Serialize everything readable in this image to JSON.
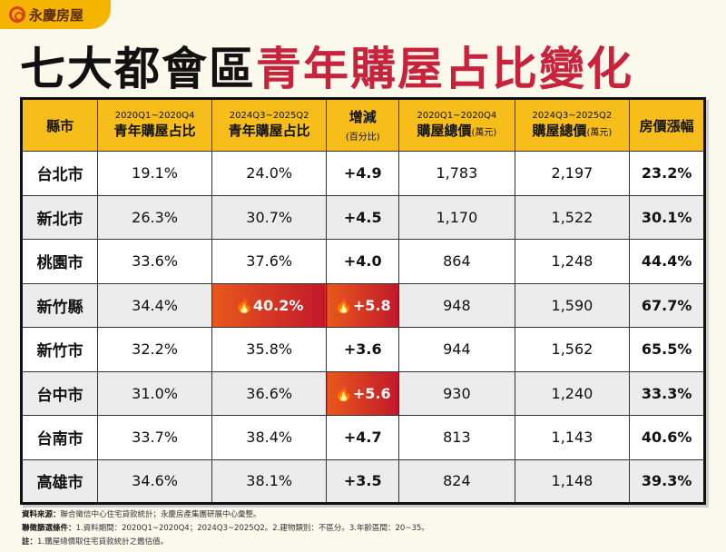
{
  "brand": "永慶房屋",
  "title": {
    "black": "七大都會區",
    "red": "青年購屋占比變化"
  },
  "headers": [
    {
      "main": "縣市"
    },
    {
      "sub": "2020Q1~2020Q4",
      "main": "青年購屋占比"
    },
    {
      "sub": "2024Q3~2025Q2",
      "main": "青年購屋占比"
    },
    {
      "main": "增減",
      "unit": "(百分比)"
    },
    {
      "sub": "2020Q1~2020Q4",
      "main": "購屋總價",
      "unit": "(萬元)"
    },
    {
      "sub": "2024Q3~2025Q2",
      "main": "購屋總價",
      "unit": "(萬元)"
    },
    {
      "main": "房價漲幅"
    }
  ],
  "rows": [
    [
      "台北市",
      "19.1%",
      "24.0%",
      "+4.9",
      "1,783",
      "2,197",
      "23.2%"
    ],
    [
      "新北市",
      "26.3%",
      "30.7%",
      "+4.5",
      "1,170",
      "1,522",
      "30.1%"
    ],
    [
      "桃園市",
      "33.6%",
      "37.6%",
      "+4.0",
      "864",
      "1,248",
      "44.4%"
    ],
    [
      "新竹縣",
      "34.4%",
      "🔥40.2%",
      "🔥+5.8",
      "948",
      "1,590",
      "67.7%"
    ],
    [
      "新竹市",
      "32.2%",
      "35.8%",
      "+3.6",
      "944",
      "1,562",
      "65.5%"
    ],
    [
      "台中市",
      "31.0%",
      "36.6%",
      "🔥+5.6",
      "930",
      "1,240",
      "33.3%"
    ],
    [
      "台南市",
      "33.7%",
      "38.4%",
      "+4.7",
      "813",
      "1,143",
      "40.6%"
    ],
    [
      "高雄市",
      "34.6%",
      "38.1%",
      "+3.5",
      "824",
      "1,148",
      "39.3%"
    ]
  ],
  "highlighted_cells": [
    [
      3,
      2
    ],
    [
      3,
      3
    ],
    [
      5,
      3
    ]
  ],
  "notes": [
    {
      "label": "資料來源：",
      "text": "聯合徵信中心住宅貸款統計；永慶房產集團研展中心彙整。"
    },
    {
      "label": "聯徵篩選條件：",
      "text": "1.資料期間：2020Q1~2020Q4；2024Q3~2025Q2。2.建物類別：不區分。3.年齡區間：20~35。"
    },
    {
      "label": "註：",
      "text": "1.購屋總價取住宅貸款統計之鑑估值。"
    }
  ],
  "colors": {
    "header": "#f7be1b",
    "accent_red": "#c8233c",
    "highlight": "#d9301f"
  }
}
